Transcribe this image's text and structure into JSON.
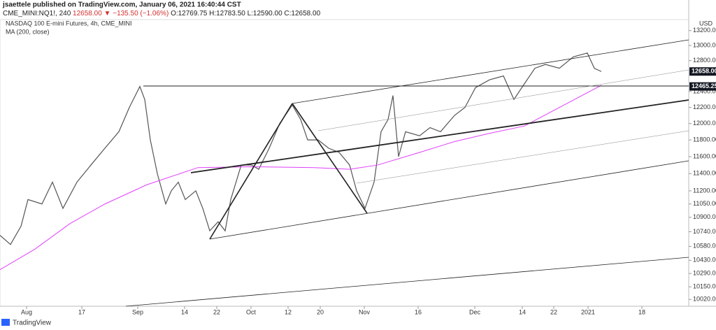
{
  "header": {
    "publisher": "jsaettele published on TradingView.com, January 06, 2021 16:40:44 CST",
    "symbol": "CME_MINI:NQ1!, 240",
    "last": "12658.00",
    "change": "▼ −135.50 (−1.06%)",
    "ohlc": "O:12769.75 H:12783.50 L:12590.00 C:12658.00"
  },
  "brand": "TradingView",
  "chart_data": {
    "type": "line",
    "title": "NASDAQ 100 E-mini Futures, 4h, CME_MINI",
    "currency": "USD",
    "log": true,
    "xlim": [
      0,
      985
    ],
    "ylim": [
      9950,
      13350
    ],
    "xticks": [
      {
        "value": 38,
        "label": "Aug"
      },
      {
        "value": 117,
        "label": "17"
      },
      {
        "value": 197,
        "label": "Sep"
      },
      {
        "value": 264,
        "label": "14"
      },
      {
        "value": 310,
        "label": "22"
      },
      {
        "value": 359,
        "label": "Oct"
      },
      {
        "value": 412,
        "label": "12"
      },
      {
        "value": 458,
        "label": "20"
      },
      {
        "value": 521,
        "label": "Nov"
      },
      {
        "value": 598,
        "label": "16"
      },
      {
        "value": 679,
        "label": "Dec"
      },
      {
        "value": 747,
        "label": "14"
      },
      {
        "value": 792,
        "label": "22"
      },
      {
        "value": 841,
        "label": "2021"
      },
      {
        "value": 918,
        "label": "18"
      }
    ],
    "yticks": [
      {
        "value": 13200,
        "label": "13200.00"
      },
      {
        "value": 13000,
        "label": "13000.00"
      },
      {
        "value": 12800,
        "label": "12800.00"
      },
      {
        "value": 12400,
        "label": "12400.00"
      },
      {
        "value": 12200,
        "label": "12200.00"
      },
      {
        "value": 12000,
        "label": "12000.00"
      },
      {
        "value": 11800,
        "label": "11800.00"
      },
      {
        "value": 11600,
        "label": "11600.00"
      },
      {
        "value": 11400,
        "label": "11400.00"
      },
      {
        "value": 11200,
        "label": "11200.00"
      },
      {
        "value": 11050,
        "label": "11050.00"
      },
      {
        "value": 10900,
        "label": "10900.00"
      },
      {
        "value": 10740,
        "label": "10740.00"
      },
      {
        "value": 10580,
        "label": "10580.00"
      },
      {
        "value": 10430,
        "label": "10430.00"
      },
      {
        "value": 10290,
        "label": "10290.00"
      },
      {
        "value": 10150,
        "label": "10150.00"
      },
      {
        "value": 10020,
        "label": "10020.00"
      }
    ],
    "price_labels": [
      {
        "value": 12658,
        "label": "12658.00",
        "color": "#131722"
      },
      {
        "value": 12465.25,
        "label": "12465.25",
        "color": "#131722"
      }
    ],
    "series": [
      {
        "color": "#555555",
        "x": [
          0,
          15,
          30,
          40,
          60,
          75,
          90,
          110,
          130,
          150,
          170,
          185,
          200,
          207,
          215,
          225,
          237,
          245,
          255,
          265,
          280,
          290,
          300,
          312,
          322,
          330,
          345,
          360,
          370,
          385,
          400,
          418,
          430,
          440,
          455,
          470,
          485,
          500,
          510,
          522,
          535,
          545,
          555,
          562,
          570,
          580,
          600,
          615,
          630,
          650,
          665,
          680,
          700,
          720,
          735,
          750,
          765,
          780,
          800,
          820,
          840,
          850,
          860
        ],
        "values": [
          10700,
          10600,
          10800,
          11100,
          11050,
          11300,
          11000,
          11300,
          11500,
          11700,
          11900,
          12200,
          12465,
          12300,
          11800,
          11400,
          11050,
          11200,
          11300,
          11100,
          11200,
          11000,
          10750,
          10850,
          10750,
          11100,
          11500,
          11500,
          11450,
          11700,
          12000,
          12230,
          12050,
          11800,
          11800,
          11700,
          11650,
          11500,
          11200,
          11000,
          11300,
          11900,
          12050,
          12350,
          11600,
          11900,
          11850,
          11950,
          11900,
          12100,
          12200,
          12450,
          12550,
          12600,
          12300,
          12500,
          12700,
          12750,
          12700,
          12850,
          12900,
          12700,
          12658
        ]
      },
      {
        "name": "MA (200, close)",
        "color": "#e040fb",
        "x": [
          0,
          50,
          100,
          150,
          210,
          283,
          360,
          450,
          500,
          540,
          600,
          650,
          700,
          750,
          800,
          860
        ],
        "values": [
          10330,
          10550,
          10830,
          11050,
          11270,
          11470,
          11480,
          11470,
          11450,
          11500,
          11650,
          11780,
          11880,
          11970,
          12200,
          12480
        ]
      }
    ]
  }
}
